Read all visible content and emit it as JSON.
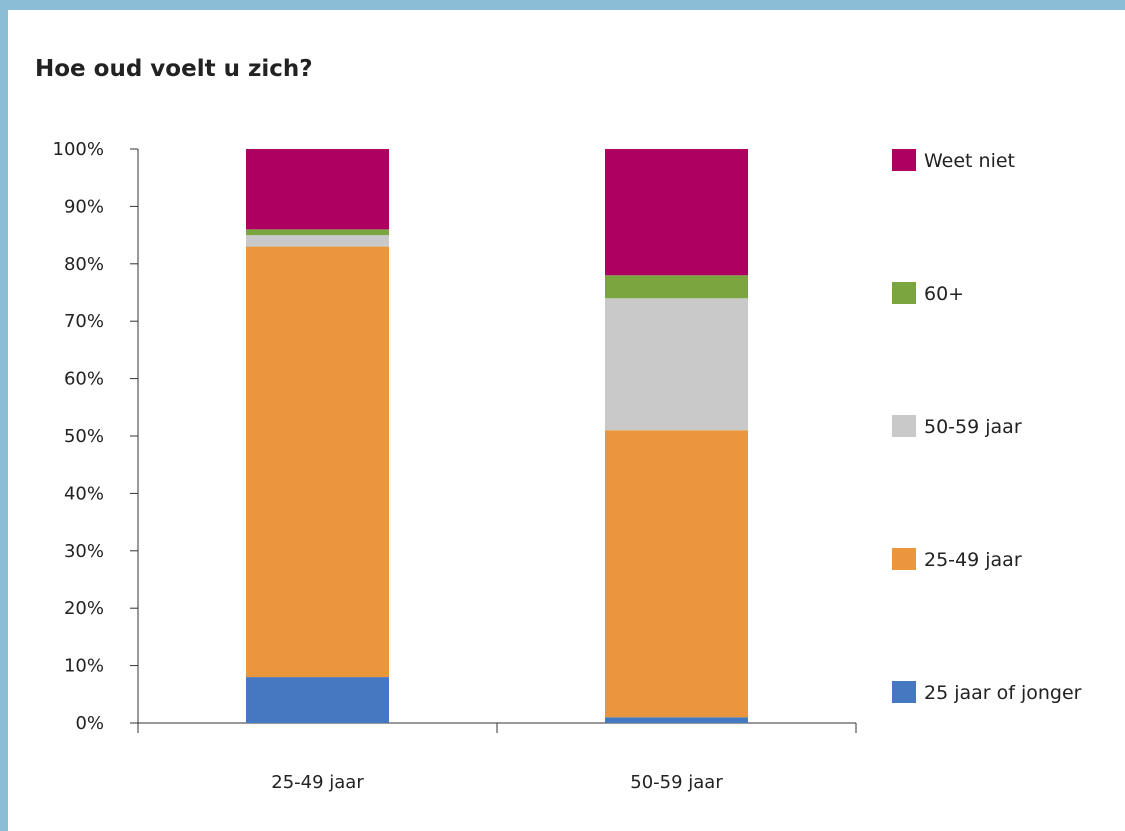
{
  "chart_data": {
    "type": "bar",
    "stacked": true,
    "title": "Hoe oud voelt u zich?",
    "xlabel": "",
    "ylabel": "",
    "ylim": [
      0,
      100
    ],
    "yticks": [
      "0%",
      "10%",
      "20%",
      "30%",
      "40%",
      "50%",
      "60%",
      "70%",
      "80%",
      "90%",
      "100%"
    ],
    "grid": false,
    "legend_position": "right",
    "categories": [
      "25-49 jaar",
      "50-59 jaar"
    ],
    "series": [
      {
        "name": "25 jaar of jonger",
        "color": "#4478c0",
        "values": [
          8,
          1
        ]
      },
      {
        "name": "25-49 jaar",
        "color": "#ea963d",
        "values": [
          75,
          50
        ]
      },
      {
        "name": "50-59 jaar",
        "color": "#c9c9c9",
        "values": [
          2,
          23
        ]
      },
      {
        "name": "60+",
        "color": "#7ba63f",
        "values": [
          1,
          4
        ]
      },
      {
        "name": "Weet niet",
        "color": "#ad0060",
        "values": [
          14,
          22
        ]
      }
    ]
  }
}
